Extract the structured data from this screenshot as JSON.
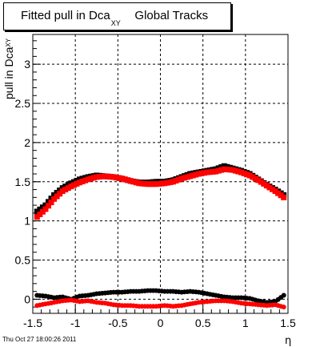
{
  "title": {
    "main": "Fitted pull in Dca",
    "subscript": "XY",
    "suffix": "Global Tracks"
  },
  "footer": "Thu Oct 27 18:00:26 2011",
  "colors": {
    "series_a": "#000000",
    "series_b": "#ff0000",
    "grid": "#000000",
    "background": "#ffffff"
  },
  "chart_data": {
    "type": "scatter",
    "title": "Fitted pull in Dca XY   Global Tracks",
    "xlabel": "η",
    "ylabel": "pull in Dca",
    "ylabel_subscript": "XY",
    "xlim": [
      -1.5,
      1.5
    ],
    "ylim": [
      -0.18,
      3.38
    ],
    "xticks": [
      -1.5,
      -1,
      -0.5,
      0,
      0.5,
      1,
      1.5
    ],
    "xtick_labels": [
      "-1.5",
      "-1",
      "-0.5",
      "0",
      "0.5",
      "1",
      "1.5"
    ],
    "yticks": [
      0,
      0.5,
      1,
      1.5,
      2,
      2.5,
      3
    ],
    "ytick_labels": [
      "0",
      "0.5",
      "1",
      "1.5",
      "2",
      "2.5",
      "3"
    ],
    "grid": true,
    "legend": "none",
    "x": [
      -1.45,
      -1.35,
      -1.25,
      -1.15,
      -1.05,
      -0.95,
      -0.85,
      -0.75,
      -0.65,
      -0.55,
      -0.45,
      -0.35,
      -0.25,
      -0.15,
      -0.05,
      0.05,
      0.15,
      0.25,
      0.35,
      0.45,
      0.55,
      0.65,
      0.75,
      0.85,
      0.95,
      1.05,
      1.15,
      1.25,
      1.35,
      1.45
    ],
    "series": [
      {
        "values": [
          1.12,
          1.2,
          1.33,
          1.42,
          1.48,
          1.53,
          1.56,
          1.58,
          1.57,
          1.56,
          1.54,
          1.51,
          1.49,
          1.49,
          1.5,
          1.5,
          1.52,
          1.56,
          1.6,
          1.62,
          1.64,
          1.66,
          1.7,
          1.67,
          1.64,
          1.6,
          1.53,
          1.46,
          1.4,
          1.33
        ],
        "marker": "square",
        "color": "#000000"
      },
      {
        "values": [
          1.05,
          1.15,
          1.28,
          1.38,
          1.44,
          1.49,
          1.53,
          1.56,
          1.57,
          1.56,
          1.54,
          1.51,
          1.48,
          1.47,
          1.47,
          1.48,
          1.5,
          1.54,
          1.57,
          1.6,
          1.62,
          1.63,
          1.66,
          1.65,
          1.62,
          1.58,
          1.52,
          1.45,
          1.38,
          1.3
        ],
        "marker": "square",
        "color": "#ff0000"
      },
      {
        "values": [
          0.05,
          0.04,
          0.02,
          0.03,
          0.0,
          0.04,
          0.05,
          0.07,
          0.08,
          0.09,
          0.09,
          0.1,
          0.1,
          0.11,
          0.11,
          0.1,
          0.1,
          0.09,
          0.1,
          0.09,
          0.07,
          0.05,
          0.03,
          0.02,
          0.02,
          0.01,
          -0.02,
          -0.04,
          -0.03,
          0.05
        ],
        "marker": "circle",
        "color": "#000000"
      },
      {
        "values": [
          -0.08,
          -0.06,
          -0.04,
          -0.02,
          -0.01,
          -0.03,
          -0.02,
          -0.04,
          -0.05,
          -0.07,
          -0.08,
          -0.08,
          -0.09,
          -0.09,
          -0.09,
          -0.08,
          -0.09,
          -0.08,
          -0.06,
          -0.04,
          -0.03,
          -0.02,
          -0.02,
          -0.03,
          -0.05,
          -0.06,
          -0.07,
          -0.08,
          -0.07,
          -0.1
        ],
        "marker": "circle",
        "color": "#ff0000"
      }
    ]
  }
}
